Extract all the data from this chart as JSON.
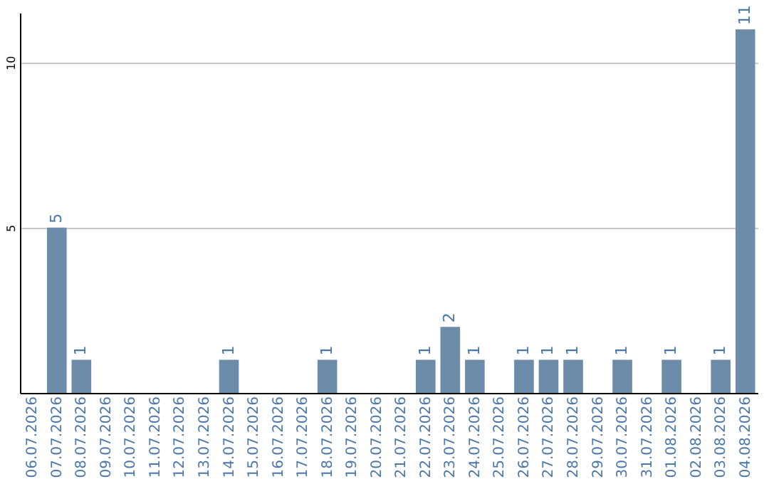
{
  "chart_data": {
    "type": "bar",
    "categories": [
      "06.07.2026",
      "07.07.2026",
      "08.07.2026",
      "09.07.2026",
      "10.07.2026",
      "11.07.2026",
      "12.07.2026",
      "13.07.2026",
      "14.07.2026",
      "15.07.2026",
      "16.07.2026",
      "17.07.2026",
      "18.07.2026",
      "19.07.2026",
      "20.07.2026",
      "21.07.2026",
      "22.07.2026",
      "23.07.2026",
      "24.07.2026",
      "25.07.2026",
      "26.07.2026",
      "27.07.2026",
      "28.07.2026",
      "29.07.2026",
      "30.07.2026",
      "31.07.2026",
      "01.08.2026",
      "02.08.2026",
      "03.08.2026",
      "04.08.2026"
    ],
    "values": [
      0,
      5,
      1,
      0,
      0,
      0,
      0,
      0,
      1,
      0,
      0,
      0,
      1,
      0,
      0,
      0,
      1,
      2,
      1,
      0,
      1,
      1,
      1,
      0,
      1,
      0,
      1,
      0,
      1,
      11
    ],
    "value_labels": [
      null,
      "5",
      "1",
      null,
      null,
      null,
      null,
      null,
      "1",
      null,
      null,
      null,
      "1",
      null,
      null,
      null,
      "1",
      "2",
      "1",
      null,
      "1",
      "1",
      "1",
      null,
      "1",
      null,
      "1",
      null,
      "1",
      "11"
    ],
    "color": "#6d8caa",
    "ylim": [
      0,
      11.5
    ],
    "yticks": [
      5,
      10
    ],
    "grid": "y"
  }
}
